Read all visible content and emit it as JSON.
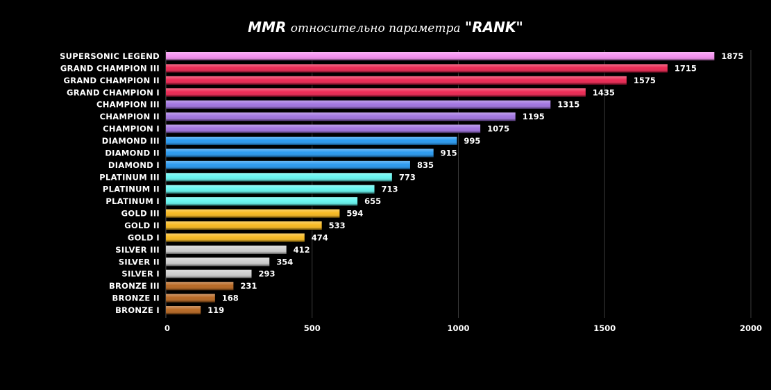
{
  "title": {
    "part1": "MMR",
    "part2": "относительно параметра",
    "part3": "\"RANK\""
  },
  "chart_data": {
    "type": "bar",
    "orientation": "horizontal",
    "grid": true,
    "xlim": [
      0,
      2000
    ],
    "xticks": [
      "0",
      "500",
      "1000",
      "1500",
      "2000"
    ],
    "categories": [
      "SUPERSONIC LEGEND",
      "GRAND CHAMPION III",
      "GRAND CHAMPION II",
      "GRAND CHAMPION I",
      "CHAMPION III",
      "CHAMPION II",
      "CHAMPION I",
      "DIAMOND III",
      "DIAMOND II",
      "DIAMOND I",
      "PLATINUM III",
      "PLATINUM II",
      "PLATINUM I",
      "GOLD III",
      "GOLD II",
      "GOLD I",
      "SILVER III",
      "SILVER II",
      "SILVER I",
      "BRONZE III",
      "BRONZE II",
      "BRONZE I"
    ],
    "values": [
      1875,
      1715,
      1575,
      1435,
      1315,
      1195,
      1075,
      995,
      915,
      835,
      773,
      713,
      655,
      594,
      533,
      474,
      412,
      354,
      293,
      231,
      168,
      119
    ],
    "colors": [
      "#f58cf0",
      "#ec1f4c",
      "#ec1f4c",
      "#ec1f4c",
      "#9e6fe0",
      "#9e6fe0",
      "#9e6fe0",
      "#2196f0",
      "#2196f0",
      "#2196f0",
      "#5ff5ef",
      "#5ff5ef",
      "#5ff5ef",
      "#f7b617",
      "#f7b617",
      "#f7b617",
      "#cdcdcd",
      "#cdcdcd",
      "#cdcdcd",
      "#b5621a",
      "#b5621a",
      "#b5621a"
    ]
  }
}
